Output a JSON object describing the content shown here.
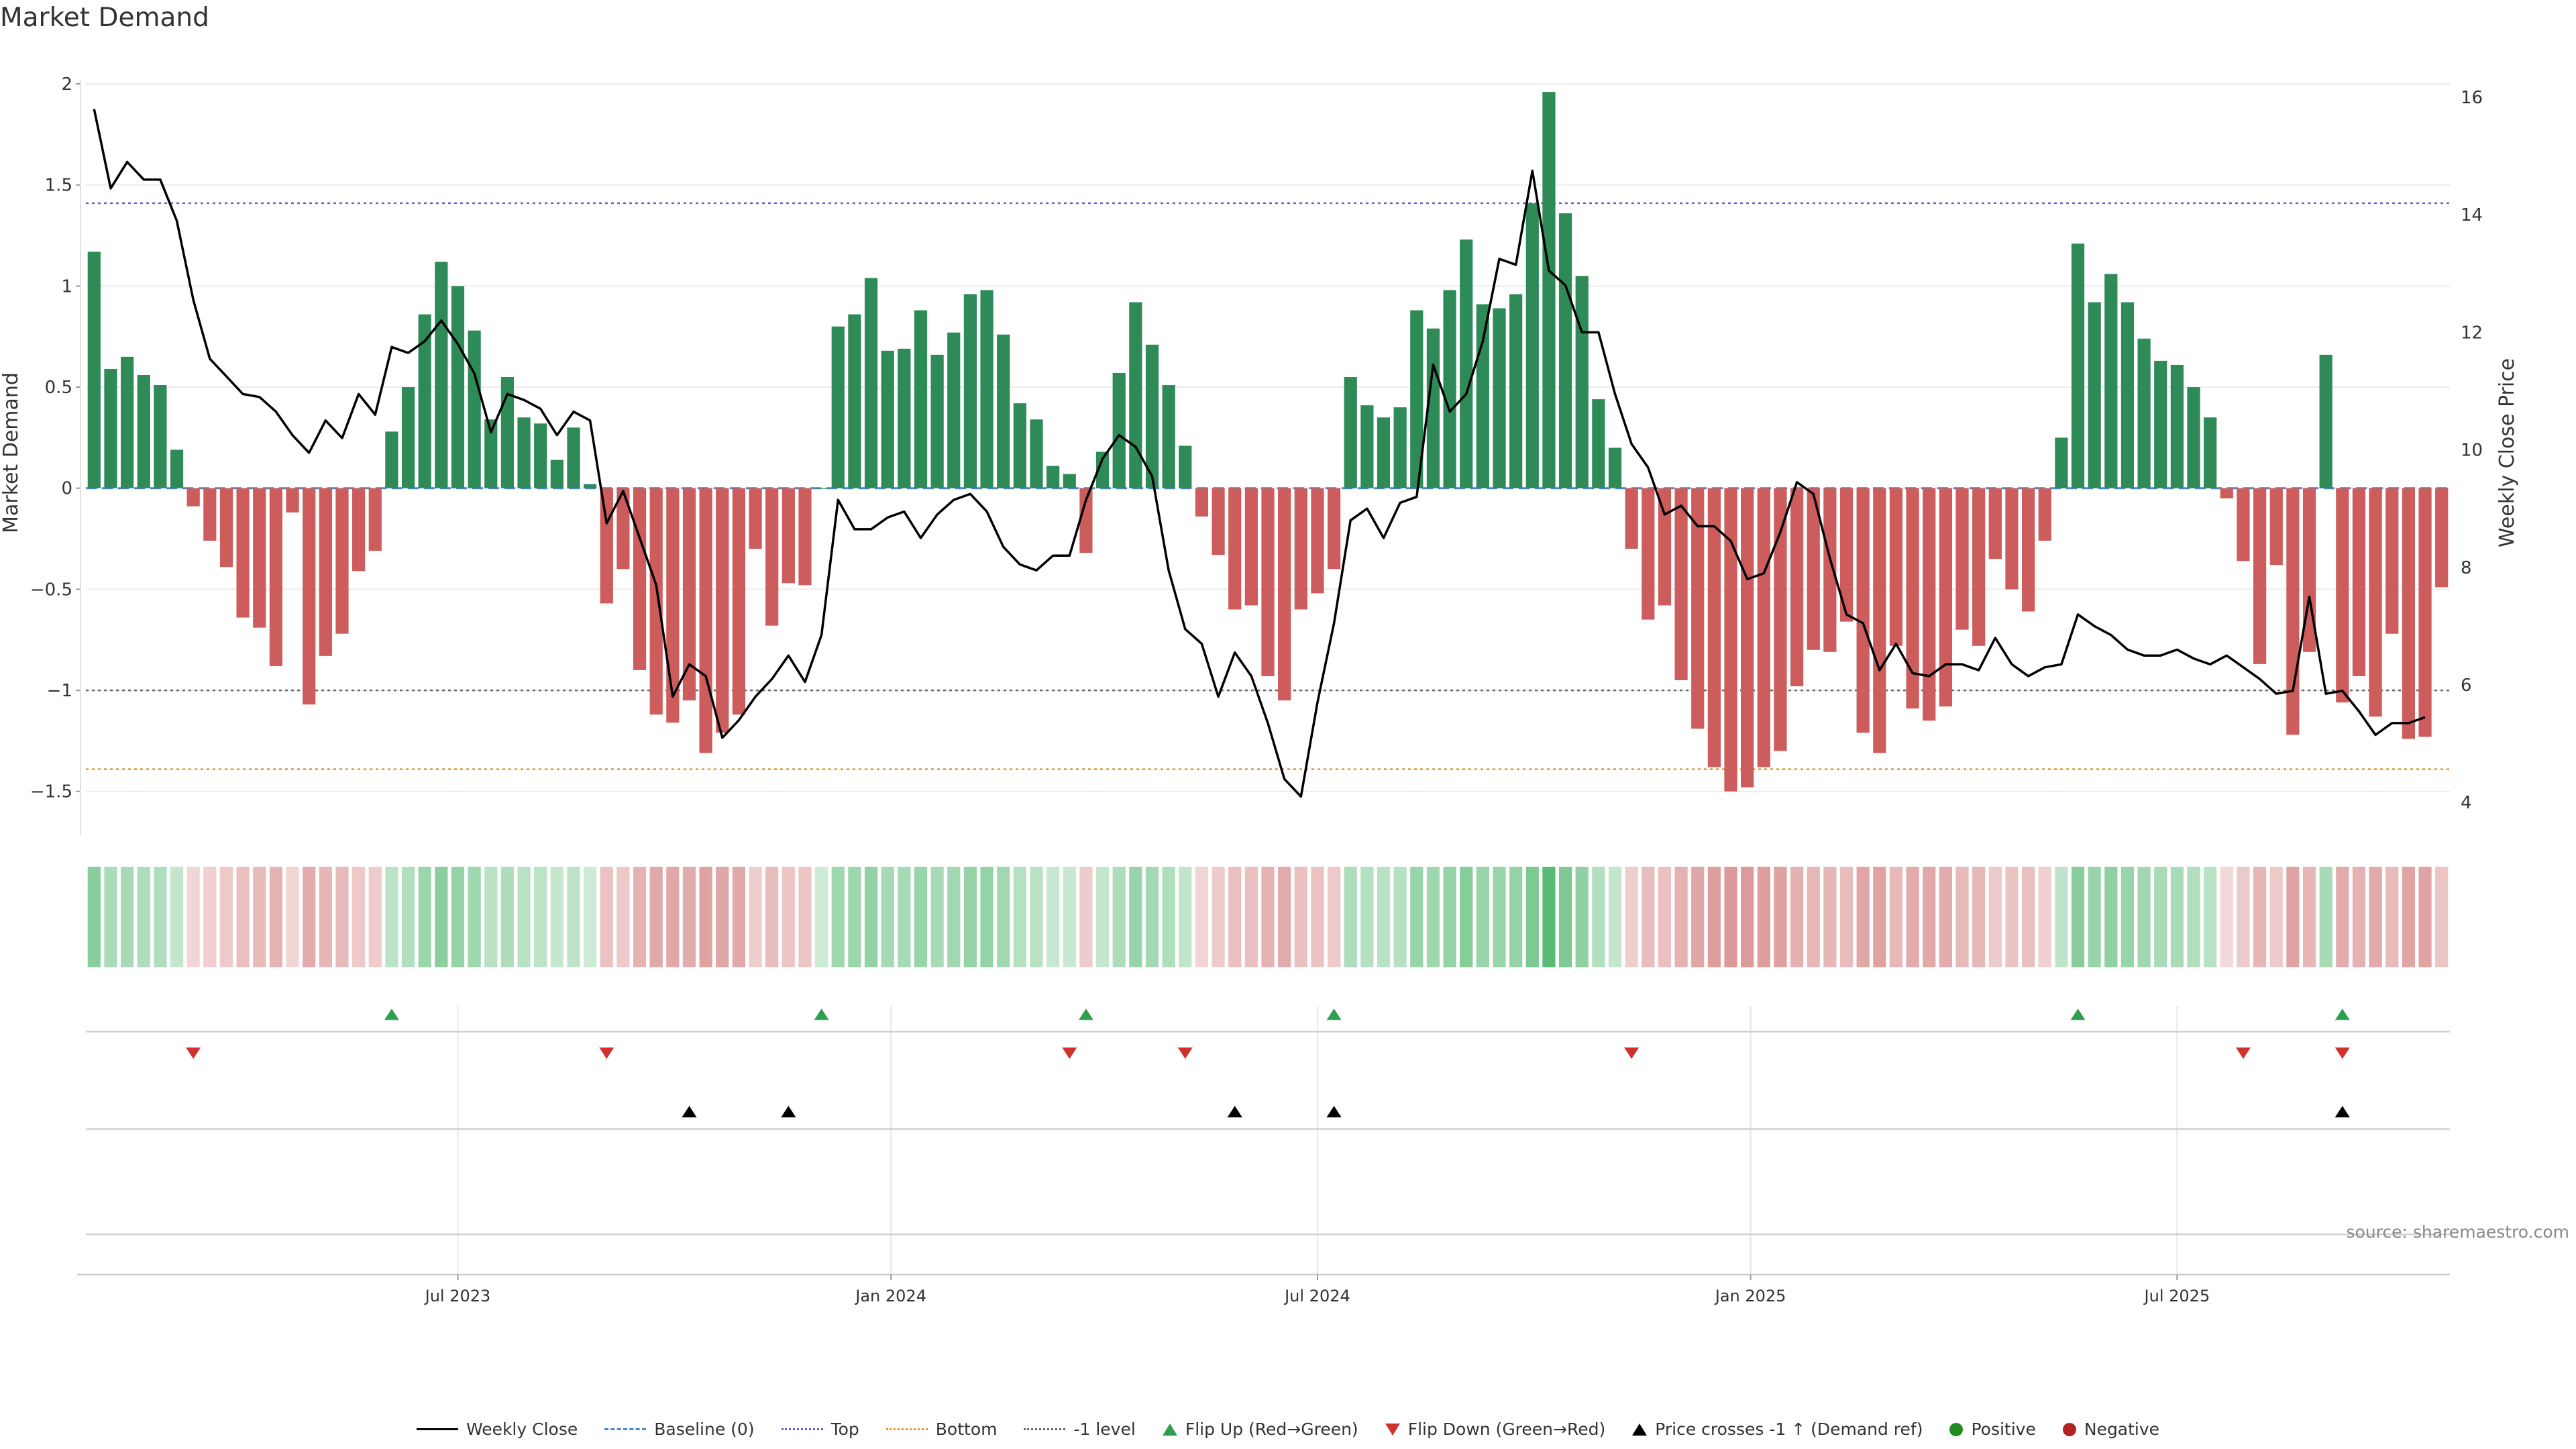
{
  "title": "Market Demand",
  "source": "source: sharemaestro.com",
  "colors": {
    "positive": "#2e8b57",
    "negative": "#cd5c5c",
    "price": "#000000",
    "baseline": "#4a86c8",
    "top": "#6a5acd",
    "bottom": "#e0962a",
    "minus1": "#666666",
    "flipUp": "#2e9e4f",
    "flipDown": "#d0312d",
    "cross": "#000000"
  },
  "legend": [
    {
      "label": "Weekly Close",
      "icon": "line-swatch"
    },
    {
      "label": "Baseline (0)",
      "icon": "dash-swatch"
    },
    {
      "label": "Top",
      "icon": "dot-swatch"
    },
    {
      "label": "Bottom",
      "icon": "dot-orange-swatch"
    },
    {
      "label": "-1 level",
      "icon": "dot-gray-swatch"
    },
    {
      "label": "Flip Up (Red→Green)",
      "icon": "triangle-up-icon"
    },
    {
      "label": "Flip Down (Green→Red)",
      "icon": "triangle-down-icon"
    },
    {
      "label": "Price crosses -1 ↑ (Demand ref)",
      "icon": "triangle-up-black-icon"
    },
    {
      "label": "Positive",
      "icon": "circle-green-icon"
    },
    {
      "label": "Negative",
      "icon": "circle-red-icon"
    }
  ],
  "chart_data": {
    "type": "bar",
    "title": "Market Demand",
    "ylabel": "Market Demand",
    "y2label": "Weekly Close Price",
    "ylim": [
      -1.7,
      2.05
    ],
    "y2lim": [
      3.5,
      16.4
    ],
    "yticks": [
      "2",
      "1.5",
      "1",
      "0.5",
      "0",
      "−0.5",
      "−1",
      "−1.5"
    ],
    "yticks_values": [
      2,
      1.5,
      1,
      0.5,
      0,
      -0.5,
      -1,
      -1.5
    ],
    "y2ticks": [
      "16",
      "14",
      "12",
      "10",
      "8",
      "6",
      "4"
    ],
    "y2ticks_values": [
      16,
      14,
      12,
      10,
      8,
      6,
      4
    ],
    "x_start_week": 0,
    "x_ticks": [
      {
        "label": "Jul 2023",
        "week": 22
      },
      {
        "label": "Jan 2024",
        "week": 48.2
      },
      {
        "label": "Jul 2024",
        "week": 74
      },
      {
        "label": "Jan 2025",
        "week": 100.2
      },
      {
        "label": "Jul 2025",
        "week": 126
      }
    ],
    "reference_lines": {
      "baseline": 0,
      "top": 1.41,
      "bottom": -1.39,
      "minus1": -1.0
    },
    "demand": [
      1.17,
      0.59,
      0.65,
      0.56,
      0.51,
      0.19,
      -0.09,
      -0.26,
      -0.39,
      -0.64,
      -0.69,
      -0.88,
      -0.12,
      -1.07,
      -0.83,
      -0.72,
      -0.41,
      -0.31,
      0.28,
      0.5,
      0.86,
      1.12,
      1.0,
      0.78,
      0.34,
      0.55,
      0.35,
      0.32,
      0.14,
      0.3,
      0.02,
      -0.57,
      -0.4,
      -0.9,
      -1.12,
      -1.16,
      -1.05,
      -1.31,
      -1.21,
      -1.12,
      -0.3,
      -0.68,
      -0.47,
      -0.48,
      0.0,
      0.8,
      0.86,
      1.04,
      0.68,
      0.69,
      0.88,
      0.66,
      0.77,
      0.96,
      0.98,
      0.76,
      0.42,
      0.34,
      0.11,
      0.07,
      -0.32,
      0.18,
      0.57,
      0.92,
      0.71,
      0.51,
      0.21,
      -0.14,
      -0.33,
      -0.6,
      -0.58,
      -0.93,
      -1.05,
      -0.6,
      -0.52,
      -0.4,
      0.55,
      0.41,
      0.35,
      0.4,
      0.88,
      0.79,
      0.98,
      1.23,
      0.91,
      0.89,
      0.96,
      1.41,
      1.96,
      1.36,
      1.05,
      0.44,
      0.2,
      -0.3,
      -0.65,
      -0.58,
      -0.95,
      -1.19,
      -1.38,
      -1.5,
      -1.48,
      -1.38,
      -1.3,
      -0.98,
      -0.8,
      -0.81,
      -0.66,
      -1.21,
      -1.31,
      -0.78,
      -1.09,
      -1.15,
      -1.08,
      -0.7,
      -0.78,
      -0.35,
      -0.5,
      -0.61,
      -0.26,
      0.25,
      1.21,
      0.92,
      1.06,
      0.92,
      0.74,
      0.63,
      0.61,
      0.5,
      0.35,
      -0.05,
      -0.36,
      -0.87,
      -0.38,
      -1.22,
      -0.81,
      0.66,
      -1.06,
      -0.93,
      -1.13,
      -0.72,
      -1.24,
      -1.23,
      -0.49
    ],
    "price": [
      15.8,
      14.45,
      14.9,
      14.6,
      14.6,
      13.9,
      12.55,
      11.55,
      11.25,
      10.95,
      10.9,
      10.65,
      10.25,
      9.95,
      10.5,
      10.2,
      10.95,
      10.6,
      11.75,
      11.65,
      11.85,
      12.2,
      11.8,
      11.3,
      10.3,
      10.95,
      10.85,
      10.7,
      10.25,
      10.65,
      10.5,
      8.75,
      9.3,
      8.5,
      7.7,
      5.8,
      6.35,
      6.15,
      5.1,
      5.4,
      5.8,
      6.1,
      6.5,
      6.05,
      6.85,
      9.15,
      8.65,
      8.65,
      8.85,
      8.95,
      8.5,
      8.9,
      9.15,
      9.25,
      8.95,
      8.35,
      8.05,
      7.95,
      8.2,
      8.2,
      9.15,
      9.85,
      10.25,
      10.05,
      9.55,
      7.95,
      6.95,
      6.7,
      5.8,
      6.55,
      6.15,
      5.35,
      4.4,
      4.1,
      5.7,
      7.05,
      8.8,
      9.0,
      8.5,
      9.1,
      9.2,
      11.45,
      10.65,
      10.95,
      11.85,
      13.25,
      13.15,
      14.75,
      13.05,
      12.8,
      12.0,
      12.0,
      10.95,
      10.1,
      9.7,
      8.9,
      9.05,
      8.7,
      8.7,
      8.45,
      7.8,
      7.9,
      8.6,
      9.45,
      9.25,
      8.15,
      7.2,
      7.05,
      6.25,
      6.7,
      6.2,
      6.15,
      6.35,
      6.35,
      6.25,
      6.8,
      6.35,
      6.15,
      6.3,
      6.35,
      7.2,
      7.0,
      6.85,
      6.6,
      6.5,
      6.5,
      6.6,
      6.45,
      6.35,
      6.5,
      6.3,
      6.1,
      5.85,
      5.9,
      7.5,
      5.85,
      5.9,
      5.55,
      5.15,
      5.35,
      5.35,
      5.45
    ],
    "flip_up_weeks": [
      18,
      44,
      60,
      75,
      120,
      136
    ],
    "flip_down_weeks": [
      6,
      31,
      59,
      66,
      93,
      130,
      136
    ],
    "cross_weeks": [
      36,
      42,
      69,
      75,
      136
    ]
  }
}
